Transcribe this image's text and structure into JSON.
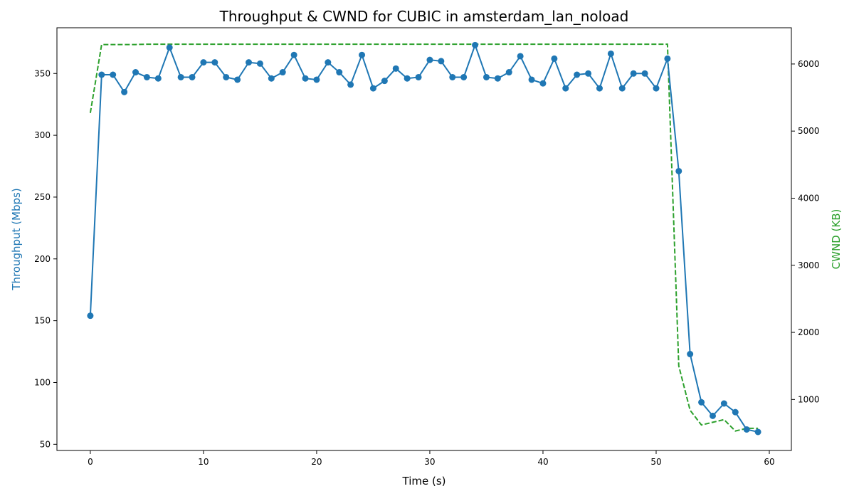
{
  "chart_data": {
    "type": "line",
    "title": "Throughput & CWND for CUBIC in amsterdam_lan_noload",
    "xlabel": "Time (s)",
    "ylabel_left": "Throughput (Mbps)",
    "ylabel_right": "CWND (KB)",
    "xlim": [
      -2.95,
      61.95
    ],
    "ylim_left": [
      45,
      387
    ],
    "ylim_right": [
      240,
      6540
    ],
    "x_ticks": [
      0,
      10,
      20,
      30,
      40,
      50,
      60
    ],
    "y_left_ticks": [
      50,
      100,
      150,
      200,
      250,
      300,
      350
    ],
    "y_right_ticks": [
      1000,
      2000,
      3000,
      4000,
      5000,
      6000
    ],
    "grid": false,
    "colors": {
      "throughput": "#1f77b4",
      "cwnd": "#2ca02c"
    },
    "series": [
      {
        "axis": "left",
        "style": "solid-markers",
        "x": [
          0,
          1,
          2,
          3,
          4,
          5,
          6,
          7,
          8,
          9,
          10,
          11,
          12,
          13,
          14,
          15,
          16,
          17,
          18,
          19,
          20,
          21,
          22,
          23,
          24,
          25,
          26,
          27,
          28,
          29,
          30,
          31,
          32,
          33,
          34,
          35,
          36,
          37,
          38,
          39,
          40,
          41,
          42,
          43,
          44,
          45,
          46,
          47,
          48,
          49,
          50,
          51,
          52,
          53,
          54,
          55,
          56,
          57,
          58,
          59
        ],
        "values": [
          154,
          349,
          349,
          335,
          351,
          347,
          346,
          371,
          347,
          347,
          359,
          359,
          347,
          345,
          359,
          358,
          346,
          351,
          365,
          346,
          345,
          359,
          351,
          341,
          365,
          338,
          344,
          354,
          346,
          347,
          361,
          360,
          347,
          347,
          373,
          347,
          346,
          351,
          364,
          345,
          342,
          362,
          338,
          349,
          350,
          338,
          366,
          338,
          350,
          350,
          338,
          362,
          271,
          123,
          84,
          73,
          83,
          76,
          62,
          60
        ]
      },
      {
        "axis": "right",
        "style": "dashed",
        "x": [
          0,
          1,
          2,
          3,
          4,
          5,
          6,
          7,
          8,
          9,
          10,
          11,
          12,
          13,
          14,
          15,
          16,
          17,
          18,
          19,
          20,
          21,
          22,
          23,
          24,
          25,
          26,
          27,
          28,
          29,
          30,
          31,
          32,
          33,
          34,
          35,
          36,
          37,
          38,
          39,
          40,
          41,
          42,
          43,
          44,
          45,
          46,
          47,
          48,
          49,
          50,
          51,
          52,
          53,
          54,
          55,
          56,
          57,
          58,
          59
        ],
        "values": [
          5270,
          6290,
          6290,
          6290,
          6290,
          6295,
          6295,
          6295,
          6295,
          6295,
          6295,
          6295,
          6295,
          6295,
          6295,
          6295,
          6295,
          6295,
          6295,
          6295,
          6295,
          6295,
          6295,
          6295,
          6295,
          6295,
          6295,
          6295,
          6295,
          6295,
          6295,
          6295,
          6295,
          6295,
          6295,
          6295,
          6295,
          6295,
          6295,
          6295,
          6295,
          6295,
          6295,
          6295,
          6295,
          6295,
          6295,
          6295,
          6295,
          6295,
          6295,
          6295,
          1500,
          840,
          620,
          660,
          700,
          530,
          570,
          570
        ]
      }
    ]
  }
}
